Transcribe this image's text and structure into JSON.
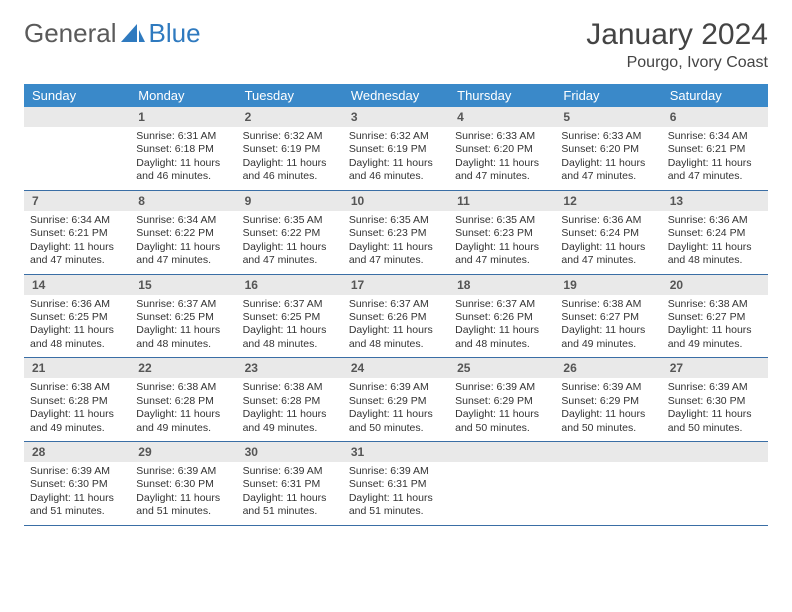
{
  "logo": {
    "text1": "General",
    "text2": "Blue"
  },
  "title": "January 2024",
  "location": "Pourgo, Ivory Coast",
  "colors": {
    "header_bg": "#3a89c9",
    "header_fg": "#ffffff",
    "row_border": "#3a6ea5",
    "daynum_bg": "#e9e9e9",
    "logo_blue": "#2f7abf"
  },
  "weekdays": [
    "Sunday",
    "Monday",
    "Tuesday",
    "Wednesday",
    "Thursday",
    "Friday",
    "Saturday"
  ],
  "startOffset": 1,
  "days": [
    {
      "n": 1,
      "sr": "6:31 AM",
      "ss": "6:18 PM",
      "dl": "11 hours and 46 minutes."
    },
    {
      "n": 2,
      "sr": "6:32 AM",
      "ss": "6:19 PM",
      "dl": "11 hours and 46 minutes."
    },
    {
      "n": 3,
      "sr": "6:32 AM",
      "ss": "6:19 PM",
      "dl": "11 hours and 46 minutes."
    },
    {
      "n": 4,
      "sr": "6:33 AM",
      "ss": "6:20 PM",
      "dl": "11 hours and 47 minutes."
    },
    {
      "n": 5,
      "sr": "6:33 AM",
      "ss": "6:20 PM",
      "dl": "11 hours and 47 minutes."
    },
    {
      "n": 6,
      "sr": "6:34 AM",
      "ss": "6:21 PM",
      "dl": "11 hours and 47 minutes."
    },
    {
      "n": 7,
      "sr": "6:34 AM",
      "ss": "6:21 PM",
      "dl": "11 hours and 47 minutes."
    },
    {
      "n": 8,
      "sr": "6:34 AM",
      "ss": "6:22 PM",
      "dl": "11 hours and 47 minutes."
    },
    {
      "n": 9,
      "sr": "6:35 AM",
      "ss": "6:22 PM",
      "dl": "11 hours and 47 minutes."
    },
    {
      "n": 10,
      "sr": "6:35 AM",
      "ss": "6:23 PM",
      "dl": "11 hours and 47 minutes."
    },
    {
      "n": 11,
      "sr": "6:35 AM",
      "ss": "6:23 PM",
      "dl": "11 hours and 47 minutes."
    },
    {
      "n": 12,
      "sr": "6:36 AM",
      "ss": "6:24 PM",
      "dl": "11 hours and 47 minutes."
    },
    {
      "n": 13,
      "sr": "6:36 AM",
      "ss": "6:24 PM",
      "dl": "11 hours and 48 minutes."
    },
    {
      "n": 14,
      "sr": "6:36 AM",
      "ss": "6:25 PM",
      "dl": "11 hours and 48 minutes."
    },
    {
      "n": 15,
      "sr": "6:37 AM",
      "ss": "6:25 PM",
      "dl": "11 hours and 48 minutes."
    },
    {
      "n": 16,
      "sr": "6:37 AM",
      "ss": "6:25 PM",
      "dl": "11 hours and 48 minutes."
    },
    {
      "n": 17,
      "sr": "6:37 AM",
      "ss": "6:26 PM",
      "dl": "11 hours and 48 minutes."
    },
    {
      "n": 18,
      "sr": "6:37 AM",
      "ss": "6:26 PM",
      "dl": "11 hours and 48 minutes."
    },
    {
      "n": 19,
      "sr": "6:38 AM",
      "ss": "6:27 PM",
      "dl": "11 hours and 49 minutes."
    },
    {
      "n": 20,
      "sr": "6:38 AM",
      "ss": "6:27 PM",
      "dl": "11 hours and 49 minutes."
    },
    {
      "n": 21,
      "sr": "6:38 AM",
      "ss": "6:28 PM",
      "dl": "11 hours and 49 minutes."
    },
    {
      "n": 22,
      "sr": "6:38 AM",
      "ss": "6:28 PM",
      "dl": "11 hours and 49 minutes."
    },
    {
      "n": 23,
      "sr": "6:38 AM",
      "ss": "6:28 PM",
      "dl": "11 hours and 49 minutes."
    },
    {
      "n": 24,
      "sr": "6:39 AM",
      "ss": "6:29 PM",
      "dl": "11 hours and 50 minutes."
    },
    {
      "n": 25,
      "sr": "6:39 AM",
      "ss": "6:29 PM",
      "dl": "11 hours and 50 minutes."
    },
    {
      "n": 26,
      "sr": "6:39 AM",
      "ss": "6:29 PM",
      "dl": "11 hours and 50 minutes."
    },
    {
      "n": 27,
      "sr": "6:39 AM",
      "ss": "6:30 PM",
      "dl": "11 hours and 50 minutes."
    },
    {
      "n": 28,
      "sr": "6:39 AM",
      "ss": "6:30 PM",
      "dl": "11 hours and 51 minutes."
    },
    {
      "n": 29,
      "sr": "6:39 AM",
      "ss": "6:30 PM",
      "dl": "11 hours and 51 minutes."
    },
    {
      "n": 30,
      "sr": "6:39 AM",
      "ss": "6:31 PM",
      "dl": "11 hours and 51 minutes."
    },
    {
      "n": 31,
      "sr": "6:39 AM",
      "ss": "6:31 PM",
      "dl": "11 hours and 51 minutes."
    }
  ],
  "labels": {
    "sunrise": "Sunrise:",
    "sunset": "Sunset:",
    "daylight": "Daylight:"
  }
}
